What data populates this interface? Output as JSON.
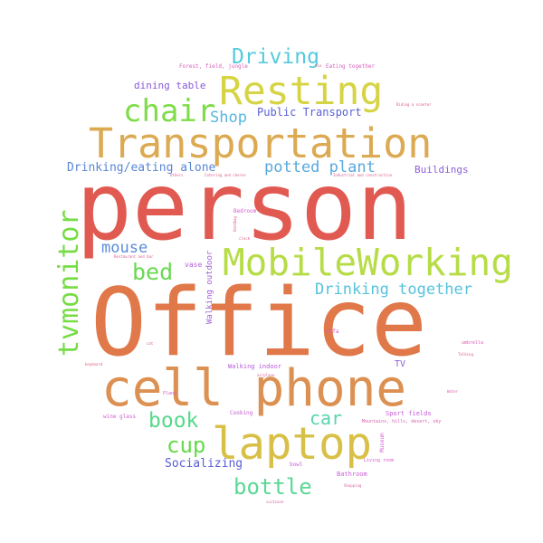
{
  "words": [
    {
      "text": "person",
      "color": "#e05a52"
    },
    {
      "text": "Office",
      "color": "#e0784a"
    },
    {
      "text": "cell phone",
      "color": "#dc9152"
    },
    {
      "text": "Transportation",
      "color": "#dcaa52"
    },
    {
      "text": "laptop",
      "color": "#d8c048"
    },
    {
      "text": "Resting",
      "color": "#d6d444"
    },
    {
      "text": "MobileWorking",
      "color": "#b6dc46"
    },
    {
      "text": "tvmonitor",
      "color": "#76dc44"
    },
    {
      "text": "chair",
      "color": "#7edc48"
    },
    {
      "text": "Driving",
      "color": "#54cadc"
    },
    {
      "text": "bed",
      "color": "#6ad854"
    },
    {
      "text": "book",
      "color": "#56d88a"
    },
    {
      "text": "bottle",
      "color": "#5ad896"
    },
    {
      "text": "cup",
      "color": "#66da4c"
    },
    {
      "text": "car",
      "color": "#56d6ae"
    },
    {
      "text": "Drinking together",
      "color": "#56c2dc"
    },
    {
      "text": "potted plant",
      "color": "#58a8de"
    },
    {
      "text": "Shop",
      "color": "#56b6e0"
    },
    {
      "text": "mouse",
      "color": "#5a8cd8"
    },
    {
      "text": "Drinking/eating alone",
      "color": "#5a86d6"
    },
    {
      "text": "Socializing",
      "color": "#5a5ed6"
    },
    {
      "text": "Public Transport",
      "color": "#5a60d4"
    },
    {
      "text": "dining table",
      "color": "#8a5ad8"
    },
    {
      "text": "Buildings",
      "color": "#8f5fd6"
    },
    {
      "text": "TV",
      "color": "#8e5cd6"
    },
    {
      "text": "Walking outdoor",
      "color": "#a35fd6"
    },
    {
      "text": "vase",
      "color": "#b45fd6"
    },
    {
      "text": "Walking indoor",
      "color": "#b65ad8"
    },
    {
      "text": "Sport fields",
      "color": "#c45ad6"
    },
    {
      "text": "Cooking",
      "color": "#c85ad2"
    },
    {
      "text": "Bathroom",
      "color": "#c860d4"
    },
    {
      "text": "bowl",
      "color": "#c560d4"
    },
    {
      "text": "Museum",
      "color": "#d45fcf"
    },
    {
      "text": "Bedroom",
      "color": "#d65fcf"
    },
    {
      "text": "wine glass",
      "color": "#d65acd"
    },
    {
      "text": "sofa",
      "color": "#d45acd"
    },
    {
      "text": "Living room",
      "color": "#d85ec8"
    },
    {
      "text": "Plane",
      "color": "#d860c4"
    },
    {
      "text": "Forest, field, jungle",
      "color": "#d85eb8"
    },
    {
      "text": "Eating together",
      "color": "#d85ebe"
    },
    {
      "text": "Mountains, hills, desert, sky",
      "color": "#d860b0"
    },
    {
      "text": "umbrella",
      "color": "#d85eb4"
    },
    {
      "text": "Water",
      "color": "#d85ea4"
    },
    {
      "text": "Shopping",
      "color": "#d85e9c"
    },
    {
      "text": "airplane",
      "color": "#d86098"
    },
    {
      "text": "suitcase",
      "color": "#d8609a"
    },
    {
      "text": "Restaurant and bar",
      "color": "#d86094"
    },
    {
      "text": "Industrial and construction",
      "color": "#d86090"
    },
    {
      "text": "Others",
      "color": "#d8608c"
    },
    {
      "text": "Catering and chores",
      "color": "#d86088"
    },
    {
      "text": "Handbag",
      "color": "#d86084"
    },
    {
      "text": "Riding a scooter",
      "color": "#d85e7e"
    },
    {
      "text": "Talking",
      "color": "#d85e7a"
    },
    {
      "text": "cat",
      "color": "#d85e76"
    },
    {
      "text": "keyboard",
      "color": "#d86078"
    },
    {
      "text": "clock",
      "color": "#d86080"
    },
    {
      "text": "tie",
      "color": "#d8607a"
    }
  ]
}
